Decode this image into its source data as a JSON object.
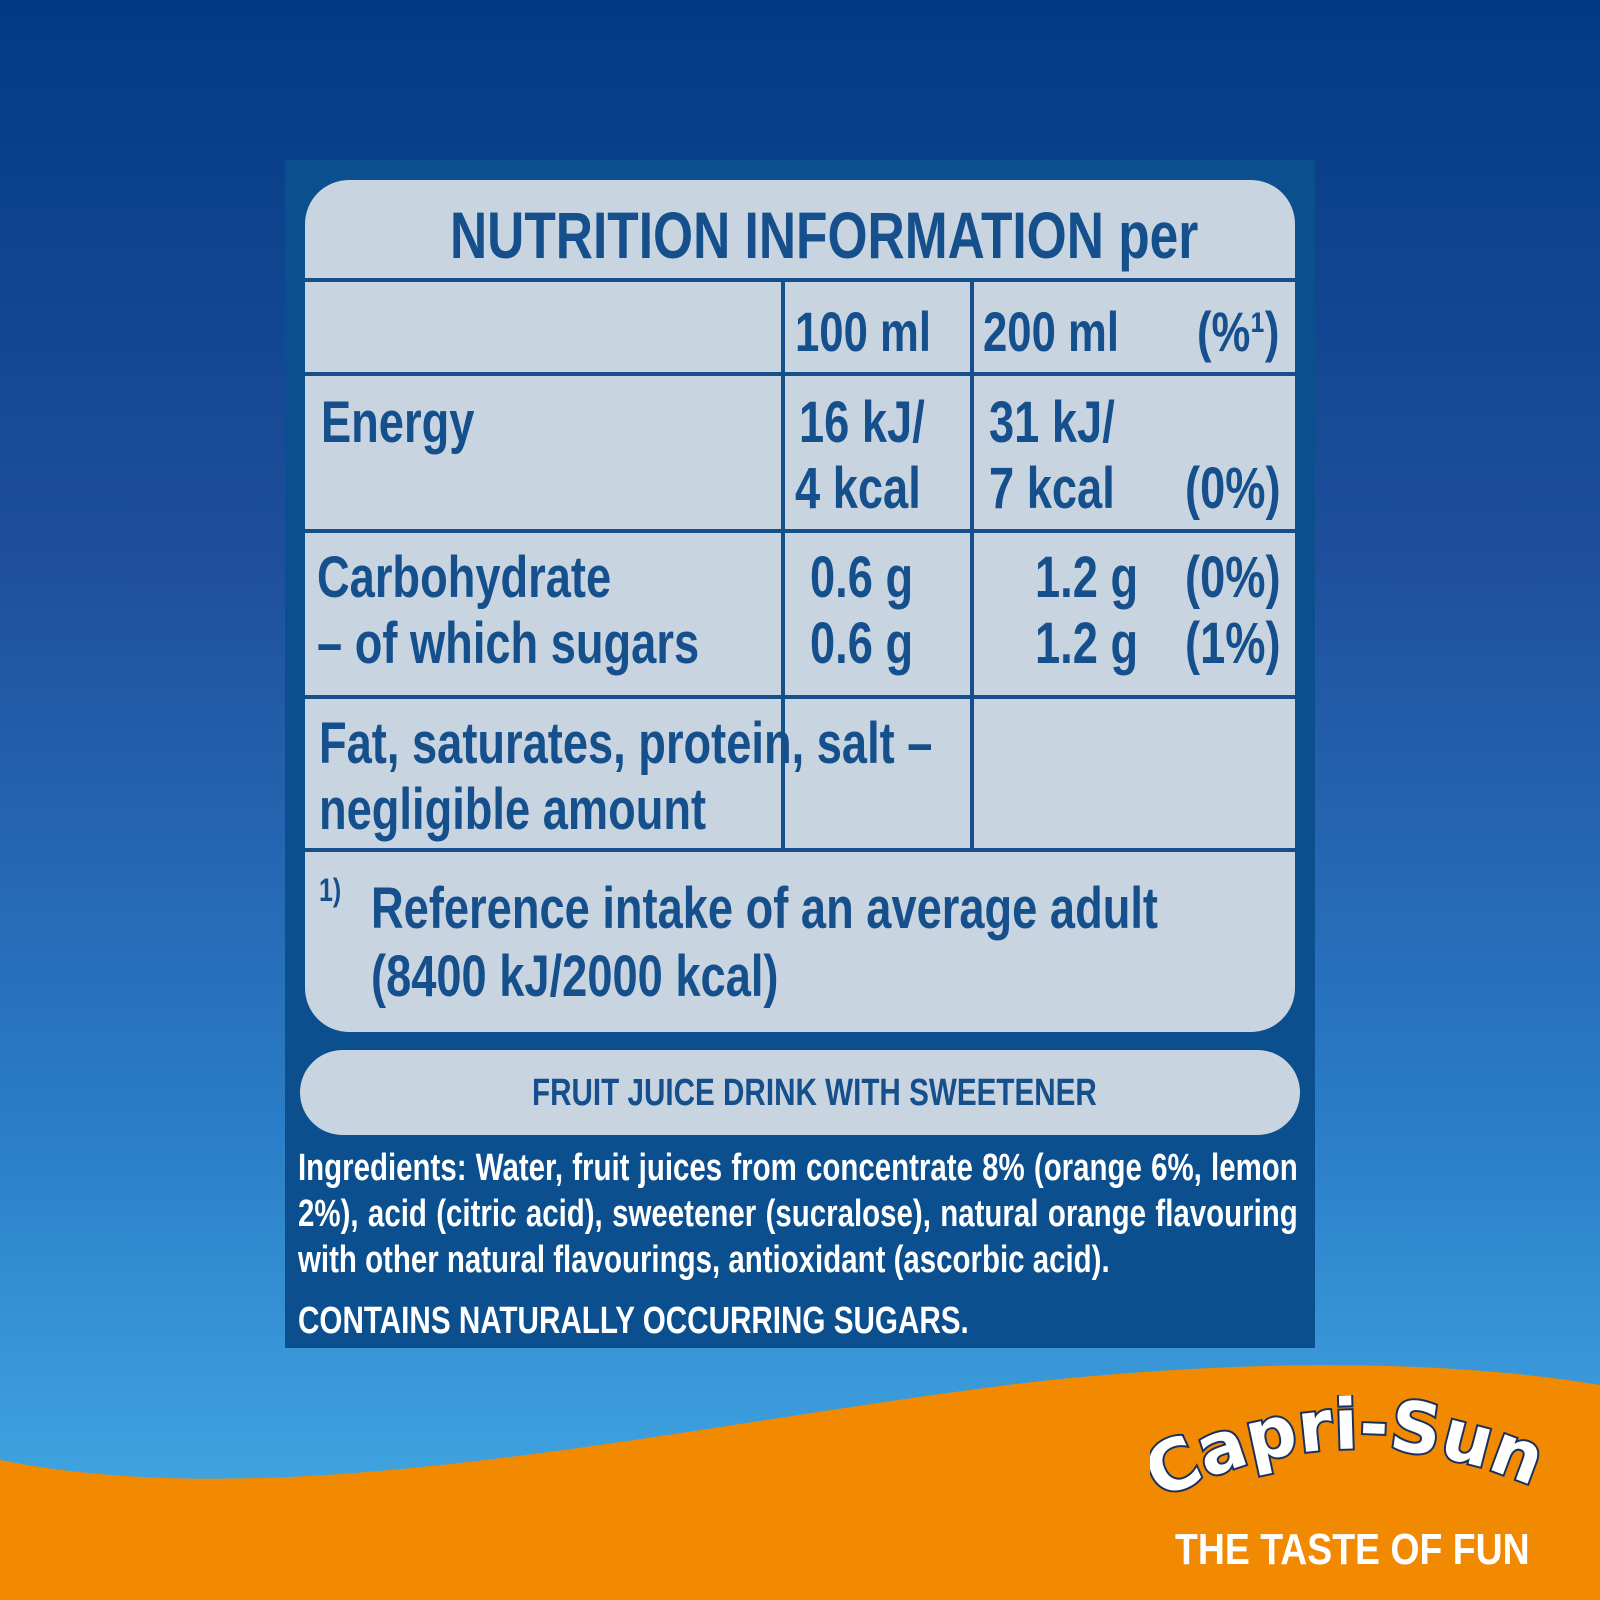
{
  "label": {
    "title": "NUTRITION INFORMATION per",
    "columns": {
      "col1": "100 ml",
      "col2": "200 ml",
      "col3": "(%¹)"
    },
    "rows": {
      "energy": {
        "label": "Energy",
        "v100_a": "16 kJ/",
        "v100_b": "4 kcal",
        "v200_a": "31 kJ/",
        "v200_b": "7 kcal",
        "ri": "(0%)"
      },
      "carbohydrate": {
        "label": "Carbohydrate",
        "v100": "0.6 g",
        "v200": "1.2 g",
        "ri": "(0%)"
      },
      "sugars": {
        "label": "– of which sugars",
        "v100": "0.6 g",
        "v200": "1.2 g",
        "ri": "(1%)"
      },
      "negligible": {
        "line1": "Fat, saturates, protein, salt –",
        "line2": "negligible amount"
      }
    },
    "footnote": {
      "marker": "1)",
      "line1": "Reference intake of an average adult",
      "line2": "(8400 kJ/2000 kcal)"
    }
  },
  "banner": "FRUIT JUICE DRINK WITH SWEETENER",
  "ingredients": {
    "heading": "Ingredients:",
    "text": " Water, fruit juices from concentrate 8% (orange 6%, lemon 2%), acid (citric acid), sweetener (sucralose), natural orange flavouring with other natural flavourings, antioxidant (ascorbic acid).",
    "contains": "CONTAINS NATURALLY OCCURRING SUGARS."
  },
  "brand": {
    "logo": "Capri-Sun",
    "slogan": "THE TASTE OF FUN"
  },
  "colors": {
    "panel": "#0b4f8f",
    "table": "#c9d4e1",
    "text": "#15508c",
    "orange": "#f18a00"
  }
}
